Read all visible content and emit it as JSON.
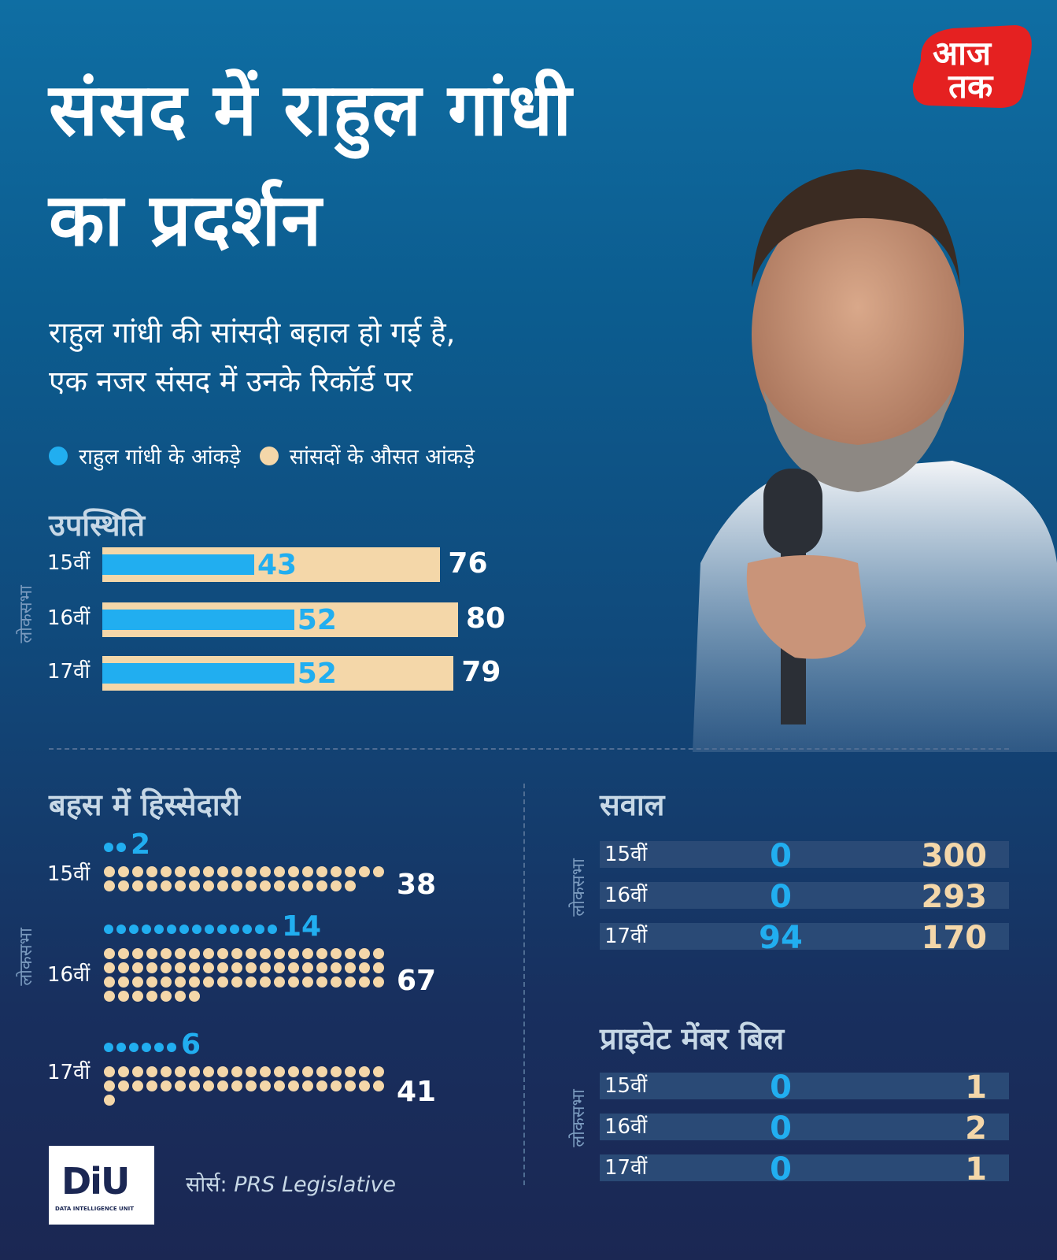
{
  "title_line1": "संसद में राहुल गांधी",
  "title_line2": "का प्रदर्शन",
  "subtitle_line1": "राहुल गांधी की सांसदी बहाल हो गई है,",
  "subtitle_line2": "एक नजर संसद में उनके रिकॉर्ड पर",
  "legend": {
    "rahul": "राहुल गांधी के आंकड़े",
    "avg": "सांसदों के औसत आंकड़े"
  },
  "colors": {
    "rahul": "#21aef0",
    "avg": "#f4d7a9"
  },
  "lok_sabha_label": "लोकसभा",
  "logo_text_top": "आज",
  "logo_text_bottom": "तक",
  "diu_logo": "DiU",
  "diu_sub": "DATA INTELLIGENCE UNIT",
  "source_label": "सोर्स:",
  "source_value": "PRS Legislative",
  "chart_data": [
    {
      "type": "bar",
      "title": "उपस्थिति",
      "categories": [
        "15वीं",
        "16वीं",
        "17वीं"
      ],
      "series": [
        {
          "name": "राहुल गांधी के आंकड़े",
          "values": [
            43,
            52,
            52
          ]
        },
        {
          "name": "सांसदों के औसत आंकड़े",
          "values": [
            76,
            80,
            79
          ]
        }
      ]
    },
    {
      "type": "scatter",
      "title": "बहस में हिस्सेदारी",
      "categories": [
        "15वीं",
        "16वीं",
        "17वीं"
      ],
      "series": [
        {
          "name": "राहुल गांधी के आंकड़े",
          "values": [
            2,
            14,
            6
          ]
        },
        {
          "name": "सांसदों के औसत आंकड़े",
          "values": [
            38,
            67,
            41
          ]
        }
      ]
    },
    {
      "type": "table",
      "title": "सवाल",
      "categories": [
        "15वीं",
        "16वीं",
        "17वीं"
      ],
      "series": [
        {
          "name": "राहुल गांधी के आंकड़े",
          "values": [
            0,
            0,
            94
          ]
        },
        {
          "name": "सांसदों के औसत आंकड़े",
          "values": [
            300,
            293,
            170
          ]
        }
      ]
    },
    {
      "type": "table",
      "title": "प्राइवेट मेंबर बिल",
      "categories": [
        "15वीं",
        "16वीं",
        "17वीं"
      ],
      "series": [
        {
          "name": "राहुल गांधी के आंकड़े",
          "values": [
            0,
            0,
            0
          ]
        },
        {
          "name": "सांसदों के औसत आंकड़े",
          "values": [
            1,
            2,
            1
          ]
        }
      ]
    }
  ]
}
